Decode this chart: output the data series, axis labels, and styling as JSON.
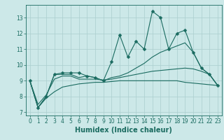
{
  "xlabel": "Humidex (Indice chaleur)",
  "bg_color": "#cce8e8",
  "line_color": "#1a6b60",
  "grid_color": "#aacece",
  "xlim": [
    -0.5,
    23.5
  ],
  "ylim": [
    6.8,
    13.8
  ],
  "xticks": [
    0,
    1,
    2,
    3,
    4,
    5,
    6,
    7,
    8,
    9,
    10,
    11,
    12,
    13,
    14,
    15,
    16,
    17,
    18,
    19,
    20,
    21,
    22,
    23
  ],
  "yticks": [
    7,
    8,
    9,
    10,
    11,
    12,
    13
  ],
  "line1_x": [
    0,
    1,
    2,
    3,
    4,
    5,
    6,
    7,
    8,
    9,
    10,
    11,
    12,
    13,
    14,
    15,
    16,
    17,
    18,
    19,
    20,
    21,
    22,
    23
  ],
  "line1_y": [
    9.0,
    7.3,
    8.0,
    9.4,
    9.5,
    9.5,
    9.5,
    9.3,
    9.2,
    9.0,
    10.2,
    11.9,
    10.5,
    11.5,
    11.0,
    13.4,
    13.0,
    11.0,
    12.0,
    12.2,
    10.8,
    9.8,
    9.4,
    8.7
  ],
  "line2_x": [
    0,
    1,
    2,
    3,
    4,
    5,
    6,
    7,
    8,
    9,
    10,
    11,
    12,
    13,
    14,
    15,
    16,
    17,
    18,
    19,
    20,
    21,
    22,
    23
  ],
  "line2_y": [
    9.0,
    7.3,
    8.0,
    9.4,
    9.4,
    9.4,
    9.2,
    9.3,
    9.2,
    9.0,
    9.2,
    9.3,
    9.5,
    9.8,
    10.1,
    10.5,
    10.8,
    11.0,
    11.2,
    11.4,
    10.8,
    9.8,
    9.4,
    8.7
  ],
  "line3_x": [
    0,
    1,
    2,
    3,
    4,
    5,
    6,
    7,
    8,
    9,
    10,
    11,
    12,
    13,
    14,
    15,
    16,
    17,
    18,
    19,
    20,
    21,
    22,
    23
  ],
  "line3_y": [
    9.0,
    7.5,
    8.1,
    9.1,
    9.3,
    9.3,
    9.1,
    9.1,
    9.1,
    9.05,
    9.1,
    9.2,
    9.3,
    9.4,
    9.5,
    9.6,
    9.65,
    9.7,
    9.75,
    9.8,
    9.75,
    9.6,
    9.4,
    8.7
  ],
  "line4_x": [
    0,
    1,
    2,
    3,
    4,
    5,
    6,
    7,
    8,
    9,
    10,
    11,
    12,
    13,
    14,
    15,
    16,
    17,
    18,
    19,
    20,
    21,
    22,
    23
  ],
  "line4_y": [
    9.0,
    7.3,
    7.9,
    8.3,
    8.6,
    8.7,
    8.8,
    8.85,
    8.9,
    8.9,
    8.95,
    9.0,
    9.0,
    9.0,
    9.0,
    9.0,
    9.0,
    9.0,
    9.0,
    8.9,
    8.85,
    8.8,
    8.75,
    8.7
  ],
  "tick_fontsize": 5.5,
  "xlabel_fontsize": 7
}
